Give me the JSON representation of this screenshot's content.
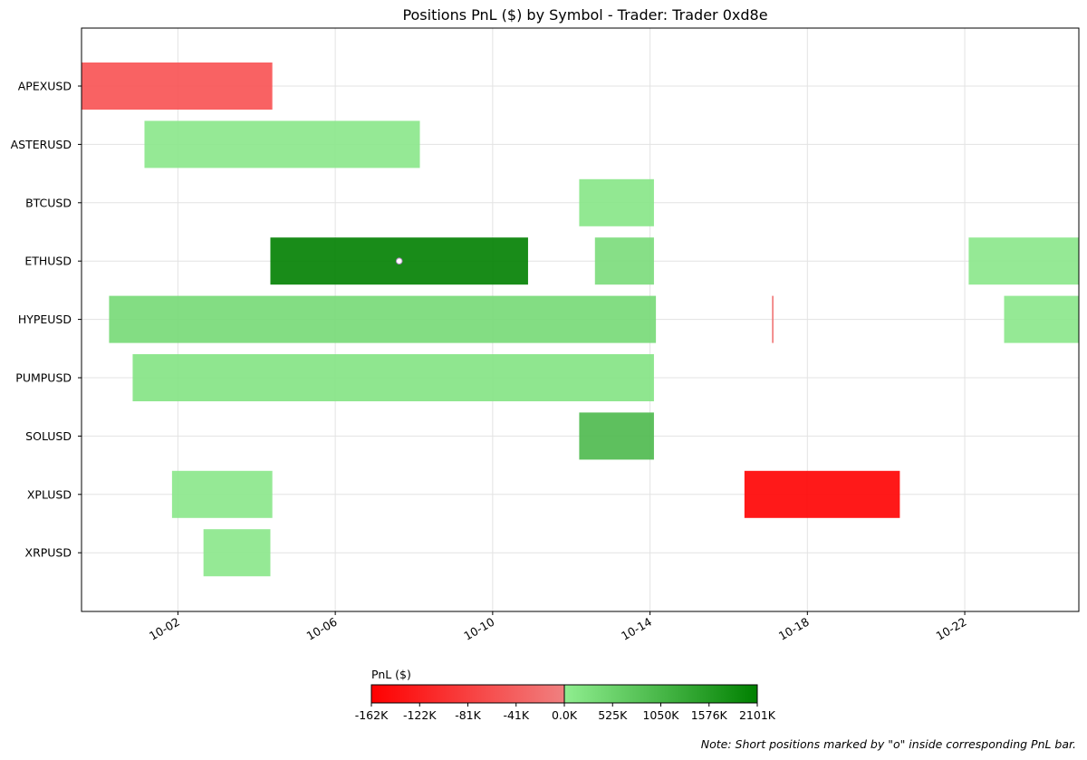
{
  "chart_data": {
    "type": "gantt",
    "title": "Positions PnL ($) by Symbol - Trader: Trader 0xd8e",
    "y_categories": [
      "APEXUSD",
      "ASTERUSD",
      "BTCUSD",
      "ETHUSD",
      "HYPEUSD",
      "PUMPUSD",
      "SOLUSD",
      "XPLUSD",
      "XRPUSD"
    ],
    "x_ticks": [
      "10-02",
      "10-06",
      "10-10",
      "10-14",
      "10-18",
      "10-22"
    ],
    "x_tick_days": [
      2,
      6,
      10,
      14,
      18,
      22
    ],
    "x_range_days": [
      -0.45,
      24.9
    ],
    "grid": true,
    "bars": [
      {
        "symbol": "APEXUSD",
        "start": -0.45,
        "end": 4.4,
        "color": "#f85152"
      },
      {
        "symbol": "ASTERUSD",
        "start": 1.15,
        "end": 8.15,
        "color": "#89e789"
      },
      {
        "symbol": "BTCUSD",
        "start": 12.2,
        "end": 14.1,
        "color": "#86e586"
      },
      {
        "symbol": "ETHUSD",
        "start": 4.35,
        "end": 10.9,
        "color": "#008000",
        "short": true
      },
      {
        "symbol": "ETHUSD",
        "start": 12.6,
        "end": 14.1,
        "color": "#7adc7a"
      },
      {
        "symbol": "ETHUSD",
        "start": 22.1,
        "end": 24.9,
        "color": "#89e789"
      },
      {
        "symbol": "HYPEUSD",
        "start": 0.25,
        "end": 14.15,
        "color": "#76d976"
      },
      {
        "symbol": "HYPEUSD",
        "start": 17.1,
        "end": 17.14,
        "color": "#f07070"
      },
      {
        "symbol": "HYPEUSD",
        "start": 23.0,
        "end": 24.9,
        "color": "#89e789"
      },
      {
        "symbol": "PUMPUSD",
        "start": 0.85,
        "end": 14.1,
        "color": "#83e383"
      },
      {
        "symbol": "SOLUSD",
        "start": 12.2,
        "end": 14.1,
        "color": "#4cb94c"
      },
      {
        "symbol": "XPLUSD",
        "start": 1.85,
        "end": 4.4,
        "color": "#89e789"
      },
      {
        "symbol": "XPLUSD",
        "start": 16.4,
        "end": 20.35,
        "color": "#ff0000"
      },
      {
        "symbol": "XRPUSD",
        "start": 2.65,
        "end": 4.35,
        "color": "#89e789"
      }
    ],
    "colorbar": {
      "label": "PnL ($)",
      "neg_ticks": [
        "-162K",
        "-122K",
        "-81K",
        "-41K",
        "0.0K"
      ],
      "pos_ticks": [
        "525K",
        "1050K",
        "1576K",
        "2101K"
      ],
      "neg_colors": [
        "#ff0000",
        "#f08080"
      ],
      "pos_colors": [
        "#90ee90",
        "#008000"
      ]
    },
    "note": "Note: Short positions marked by \"o\" inside corresponding PnL bar."
  }
}
